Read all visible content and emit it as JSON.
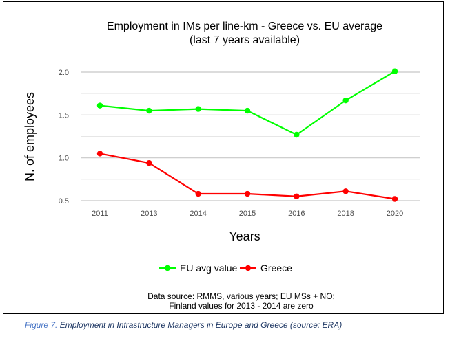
{
  "chart_data": {
    "type": "line",
    "title": "Employment in IMs per line-km - Greece vs. EU average",
    "subtitle": "(last 7 years available)",
    "xlabel": "Years",
    "ylabel": "N. of employees",
    "categories": [
      "2011",
      "2013",
      "2014",
      "2015",
      "2016",
      "2018",
      "2020"
    ],
    "y_ticks": [
      "0.5",
      "1.0",
      "1.5",
      "2.0"
    ],
    "ylim": [
      0.5,
      2.0
    ],
    "grid": true,
    "legend_position": "bottom",
    "series": [
      {
        "name": "EU avg value",
        "color": "#00ff00",
        "values": [
          1.61,
          1.55,
          1.57,
          1.55,
          1.27,
          1.67,
          2.01
        ]
      },
      {
        "name": "Greece",
        "color": "#ff0000",
        "values": [
          1.05,
          0.94,
          0.58,
          0.58,
          0.55,
          0.61,
          0.52
        ]
      }
    ],
    "note_line1": "Data source: RMMS, various years; EU MSs + NO;",
    "note_line2": "Finland values for 2013 - 2014 are zero"
  },
  "caption": {
    "label": "Figure 7.",
    "text": "Employment in Infrastructure Managers in Europe and Greece (source: ERA)"
  }
}
